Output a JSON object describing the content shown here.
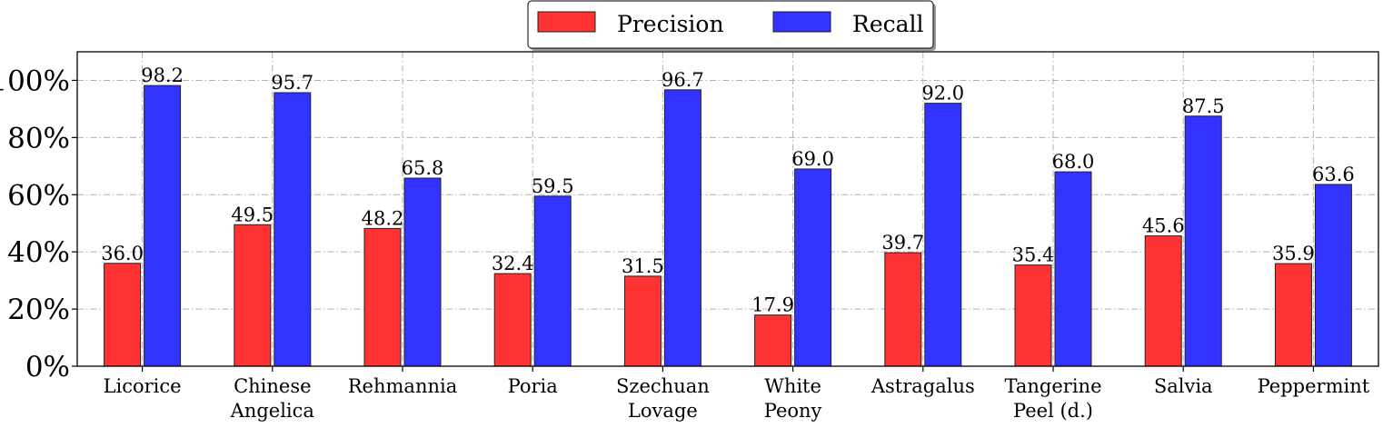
{
  "chart_data": {
    "type": "bar",
    "title": "",
    "xlabel": "",
    "ylabel": "",
    "categories": [
      [
        "Licorice"
      ],
      [
        "Chinese",
        "Angelica"
      ],
      [
        "Rehmannia"
      ],
      [
        "Poria"
      ],
      [
        "Szechuan",
        "Lovage"
      ],
      [
        "White",
        "Peony"
      ],
      [
        "Astragalus"
      ],
      [
        "Tangerine",
        "Peel (d.)"
      ],
      [
        "Salvia"
      ],
      [
        "Peppermint"
      ]
    ],
    "series": [
      {
        "name": "Precision",
        "color": "#ff3333",
        "values": [
          36.0,
          49.5,
          48.2,
          32.4,
          31.5,
          17.9,
          39.7,
          35.4,
          45.6,
          35.9
        ],
        "labels": [
          "36.0",
          "49.5",
          "48.2",
          "32.4",
          "31.5",
          "17.9",
          "39.7",
          "35.4",
          "45.6",
          "35.9"
        ]
      },
      {
        "name": "Recall",
        "color": "#3333ff",
        "values": [
          98.2,
          95.7,
          65.8,
          59.5,
          96.7,
          69.0,
          92.0,
          68.0,
          87.5,
          63.6
        ],
        "labels": [
          "98.2",
          "95.7",
          "65.8",
          "59.5",
          "96.7",
          "69.0",
          "92.0",
          "68.0",
          "87.5",
          "63.6"
        ]
      }
    ],
    "ylim": [
      0,
      110
    ],
    "yticks": [
      0,
      20,
      40,
      60,
      80,
      100
    ],
    "ytick_labels": [
      "0%",
      "20%",
      "40%",
      "60%",
      "80%",
      "100%"
    ],
    "grid": true,
    "legend": {
      "position": "top-center",
      "entries": [
        "Precision",
        "Recall"
      ]
    }
  }
}
